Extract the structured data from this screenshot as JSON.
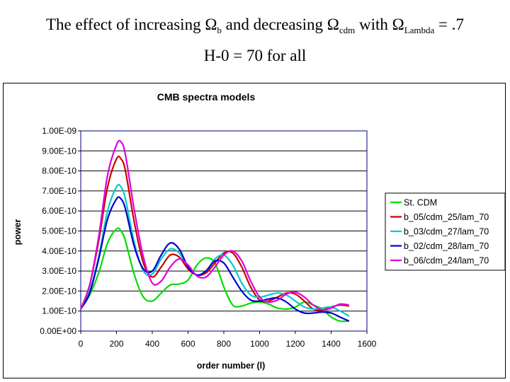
{
  "slide": {
    "title_pre": "The effect of increasing Ω",
    "title_sub1": "b",
    "title_mid": " and decreasing Ω",
    "title_sub2": "cdm",
    "title_mid2": " with  Ω",
    "title_sub3": "Lambda",
    "title_post": " = .7",
    "subtitle": "H-0 = 70 for all"
  },
  "chart_data": {
    "type": "line",
    "title": "CMB spectra models",
    "xlabel": "order number (l)",
    "ylabel": "power",
    "xlim": [
      0,
      1600
    ],
    "ylim": [
      0,
      1e-09
    ],
    "xticks": [
      "0",
      "200",
      "400",
      "600",
      "800",
      "1000",
      "1200",
      "1400",
      "1600"
    ],
    "yticks": [
      "0.00E+00",
      "1.00E-10",
      "2.00E-10",
      "3.00E-10",
      "4.00E-10",
      "5.00E-10",
      "6.00E-10",
      "7.00E-10",
      "8.00E-10",
      "9.00E-10",
      "1.00E-09"
    ],
    "grid": "horizontal",
    "legend_position": "right",
    "series": [
      {
        "name": "St. CDM",
        "color": "#00dd00",
        "x": [
          0,
          50,
          100,
          150,
          200,
          225,
          250,
          300,
          350,
          400,
          450,
          500,
          550,
          600,
          650,
          700,
          750,
          800,
          850,
          900,
          950,
          1000,
          1050,
          1100,
          1150,
          1200,
          1250,
          1300,
          1350,
          1400,
          1450,
          1500
        ],
        "y": [
          1.1e-10,
          1.8e-10,
          2.9e-10,
          4.4e-10,
          5.1e-10,
          5e-10,
          4.5e-10,
          2.8e-10,
          1.7e-10,
          1.5e-10,
          1.9e-10,
          2.3e-10,
          2.35e-10,
          2.55e-10,
          3.3e-10,
          3.65e-10,
          3.4e-10,
          2.2e-10,
          1.3e-10,
          1.25e-10,
          1.4e-10,
          1.45e-10,
          1.35e-10,
          1.15e-10,
          1.1e-10,
          1.2e-10,
          1.45e-10,
          1.3e-10,
          1.1e-10,
          7e-11,
          5e-11,
          5e-11
        ]
      },
      {
        "name": "b_05/cdm_25/lam_70",
        "color": "#cc0000",
        "x": [
          0,
          50,
          100,
          150,
          200,
          225,
          250,
          300,
          350,
          400,
          450,
          500,
          550,
          600,
          650,
          700,
          750,
          800,
          850,
          900,
          950,
          1000,
          1050,
          1100,
          1150,
          1200,
          1250,
          1300,
          1350,
          1400,
          1450,
          1500
        ],
        "y": [
          1.1e-10,
          2.3e-10,
          4.5e-10,
          7.2e-10,
          8.6e-10,
          8.6e-10,
          8e-10,
          5.4e-10,
          3.4e-10,
          2.7e-10,
          3.2e-10,
          3.8e-10,
          3.7e-10,
          3.1e-10,
          2.8e-10,
          2.9e-10,
          3.4e-10,
          3.9e-10,
          3.9e-10,
          3.2e-10,
          2.2e-10,
          1.55e-10,
          1.5e-10,
          1.7e-10,
          1.9e-10,
          1.85e-10,
          1.5e-10,
          1.1e-10,
          1.05e-10,
          1.2e-10,
          1.3e-10,
          1.25e-10
        ]
      },
      {
        "name": "b_03/cdm_27/lam_70",
        "color": "#00cccc",
        "x": [
          0,
          50,
          100,
          150,
          200,
          225,
          250,
          300,
          350,
          400,
          450,
          500,
          550,
          600,
          650,
          700,
          750,
          800,
          850,
          900,
          950,
          1000,
          1050,
          1100,
          1150,
          1200,
          1250,
          1300,
          1350,
          1400,
          1450,
          1500
        ],
        "y": [
          1.1e-10,
          2e-10,
          3.7e-10,
          6e-10,
          7.2e-10,
          7.2e-10,
          6.6e-10,
          4.4e-10,
          3e-10,
          2.85e-10,
          3.6e-10,
          4.1e-10,
          3.9e-10,
          3.2e-10,
          2.8e-10,
          3e-10,
          3.6e-10,
          3.8e-10,
          3.3e-10,
          2.4e-10,
          1.8e-10,
          1.7e-10,
          1.8e-10,
          1.9e-10,
          1.8e-10,
          1.5e-10,
          1.2e-10,
          1.1e-10,
          1.15e-10,
          1.2e-10,
          1e-10,
          7.5e-11
        ]
      },
      {
        "name": "b_02/cdm_28/lam_70",
        "color": "#0000cc",
        "x": [
          0,
          50,
          100,
          150,
          200,
          225,
          250,
          300,
          350,
          400,
          450,
          500,
          550,
          600,
          650,
          700,
          750,
          800,
          850,
          900,
          950,
          1000,
          1050,
          1100,
          1150,
          1200,
          1250,
          1300,
          1350,
          1400,
          1450,
          1500
        ],
        "y": [
          1.1e-10,
          1.9e-10,
          3.6e-10,
          5.6e-10,
          6.6e-10,
          6.6e-10,
          6.1e-10,
          4.2e-10,
          3.1e-10,
          3e-10,
          3.8e-10,
          4.4e-10,
          4.1e-10,
          3.2e-10,
          2.8e-10,
          3e-10,
          3.5e-10,
          3.4e-10,
          2.7e-10,
          2e-10,
          1.55e-10,
          1.5e-10,
          1.6e-10,
          1.65e-10,
          1.45e-10,
          1.1e-10,
          9e-11,
          9e-11,
          9.5e-11,
          9e-11,
          7e-11,
          5e-11
        ]
      },
      {
        "name": "b_06/cdm_24/lam_70",
        "color": "#dd00dd",
        "x": [
          0,
          50,
          100,
          150,
          200,
          225,
          250,
          300,
          350,
          400,
          450,
          500,
          550,
          600,
          650,
          700,
          750,
          800,
          850,
          900,
          950,
          1000,
          1050,
          1100,
          1150,
          1200,
          1250,
          1300,
          1350,
          1400,
          1450,
          1500
        ],
        "y": [
          1.1e-10,
          2.3e-10,
          4.7e-10,
          7.8e-10,
          9.3e-10,
          9.45e-10,
          8.8e-10,
          6e-10,
          3.7e-10,
          2.4e-10,
          2.5e-10,
          3.2e-10,
          3.6e-10,
          3.3e-10,
          2.75e-10,
          2.7e-10,
          3.2e-10,
          3.8e-10,
          4e-10,
          3.5e-10,
          2.5e-10,
          1.7e-10,
          1.45e-10,
          1.55e-10,
          1.85e-10,
          1.95e-10,
          1.7e-10,
          1.3e-10,
          1.05e-10,
          1.15e-10,
          1.35e-10,
          1.3e-10
        ]
      }
    ]
  }
}
